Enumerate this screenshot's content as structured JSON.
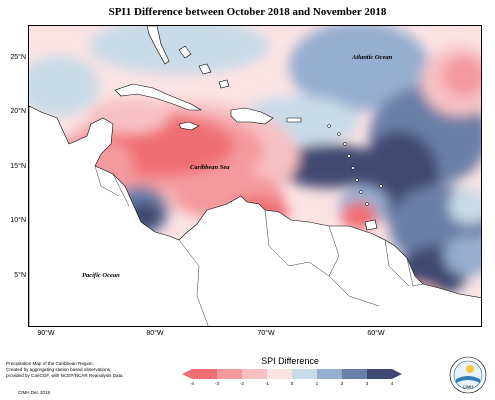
{
  "title": "SPI1 Difference between October 2018 and November 2018",
  "latitude_labels": [
    "25°N",
    "20°N",
    "15°N",
    "10°N",
    "5°N"
  ],
  "longitude_labels": [
    "90°W",
    "80°W",
    "70°W",
    "60°W"
  ],
  "place_labels": {
    "atlantic": "Atlantic Ocean",
    "caribbean": "Caribbean Sea",
    "pacific": "Pacific Ocean"
  },
  "footer": {
    "line1": "Precipitation Map of the Caribbean Region.",
    "line2": "Created by aggregating station based observations,",
    "line3": "provided by CariCOF, with NCEP/NCAR Reanalysis Data.",
    "credit": "CIMH Dec 2018"
  },
  "legend": {
    "title": "SPI Difference",
    "ticks": [
      "-4",
      "-3",
      "-2",
      "-1",
      "0",
      "1",
      "2",
      "3",
      "4"
    ],
    "colors": [
      "#ef6e74",
      "#f49a9e",
      "#f7c1c3",
      "#fbe3e4",
      "#c8dbe8",
      "#96aed0",
      "#6a7fa8",
      "#3f4872"
    ]
  },
  "logo_text": "CIMH",
  "colors": {
    "land": "#ffffff",
    "coast": "#000000",
    "frame": "#000000"
  }
}
